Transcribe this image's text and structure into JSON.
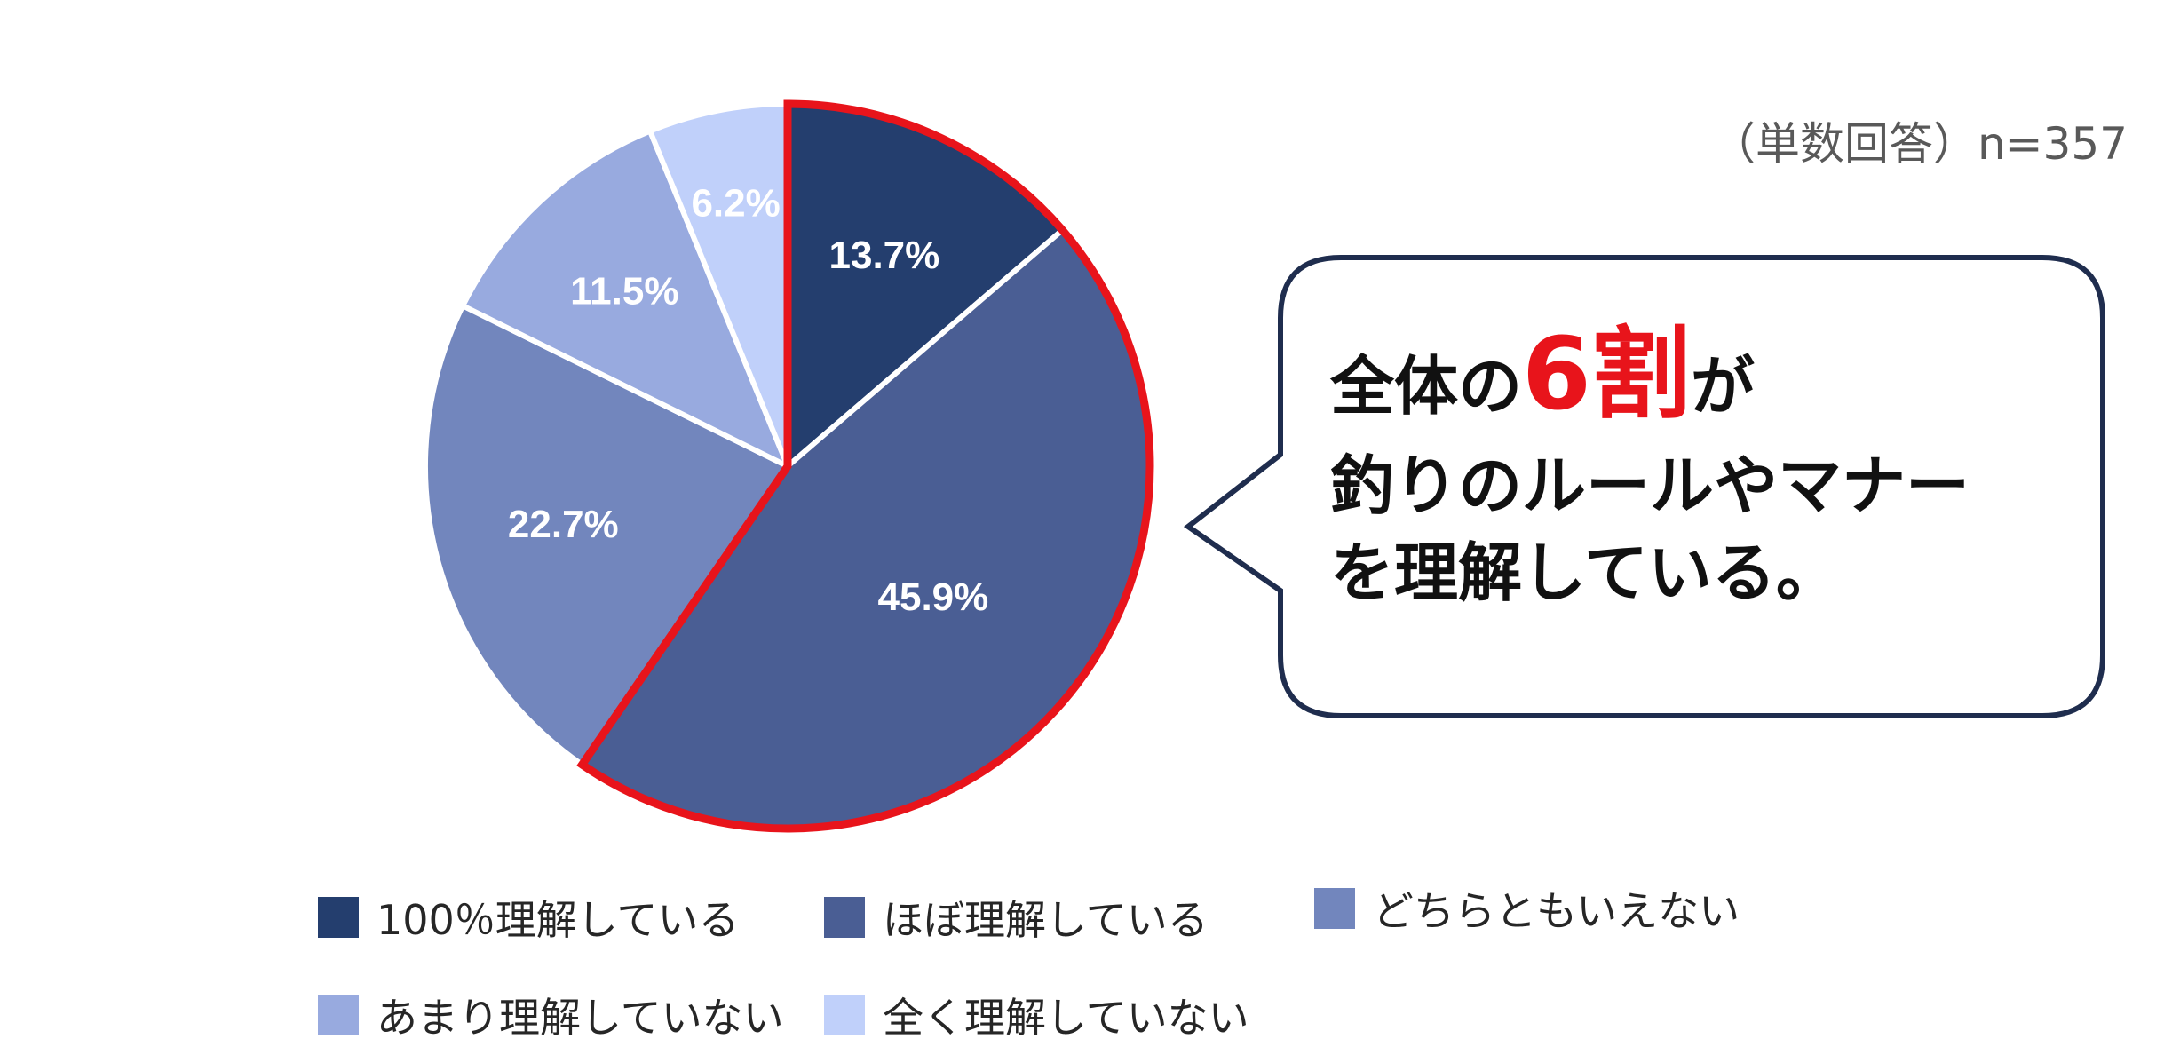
{
  "header": {
    "sample_note": "（単数回答）n=357"
  },
  "callout": {
    "line1_before": "全体の",
    "line1_emph": "6割",
    "line1_after": "が",
    "line2": "釣りのルールやマナー",
    "line3": "を理解している。",
    "emph_color": "#e8141b",
    "border_color": "#1f2d4e"
  },
  "chart_data": {
    "type": "pie",
    "start_angle_deg": 0,
    "direction": "clockwise",
    "highlight": {
      "slices": [
        0,
        1
      ],
      "outline_color": "#e8141b"
    },
    "slices": [
      {
        "label": "100％理解している",
        "value": 13.7,
        "value_label": "13.7%",
        "color": "#243e6e"
      },
      {
        "label": "ほぼ理解している",
        "value": 45.9,
        "value_label": "45.9%",
        "color": "#4a5e94"
      },
      {
        "label": "どちらともいえない",
        "value": 22.7,
        "value_label": "22.7%",
        "color": "#7286bd"
      },
      {
        "label": "あまり理解していない",
        "value": 11.5,
        "value_label": "11.5%",
        "color": "#98aadf"
      },
      {
        "label": "全く理解していない",
        "value": 6.2,
        "value_label": "6.2%",
        "color": "#c0d0fa"
      }
    ],
    "legend_position": "bottom"
  }
}
